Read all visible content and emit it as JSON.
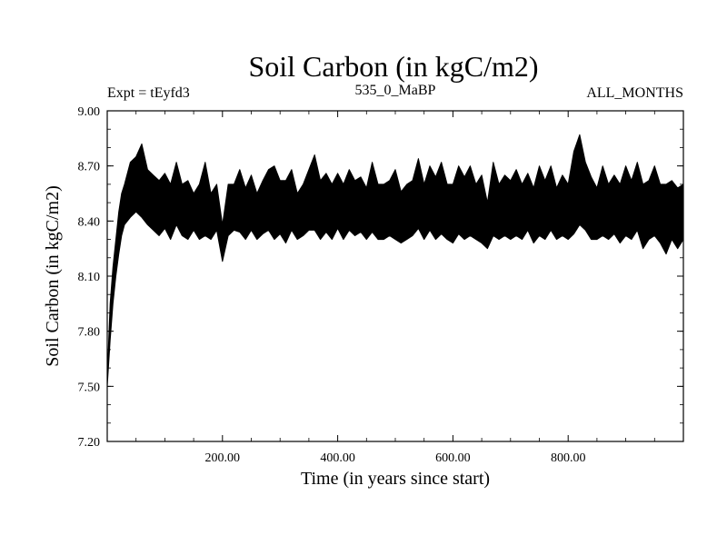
{
  "chart_data": {
    "type": "line",
    "title": "Soil Carbon (in kgC/m2)",
    "subtitle_left": "Expt = tEyfd3",
    "subtitle_center": "535_0_MaBP",
    "subtitle_right": "ALL_MONTHS",
    "xlabel": "Time (in years since start)",
    "ylabel": "Soil Carbon (in kgC/m2)",
    "xlim": [
      0,
      1000
    ],
    "ylim": [
      7.2,
      9.0
    ],
    "x_ticks": [
      200,
      400,
      600,
      800
    ],
    "x_tick_labels": [
      "200.00",
      "400.00",
      "600.00",
      "800.00"
    ],
    "y_ticks": [
      7.2,
      7.5,
      7.8,
      8.1,
      8.4,
      8.7,
      9.0
    ],
    "y_tick_labels": [
      "7.20",
      "7.50",
      "7.80",
      "8.10",
      "8.40",
      "8.70",
      "9.00"
    ],
    "series": [
      {
        "name": "Soil Carbon",
        "color": "#000000",
        "x": [
          0,
          5,
          10,
          15,
          20,
          25,
          30,
          40,
          50,
          60,
          70,
          80,
          90,
          100,
          110,
          120,
          130,
          140,
          150,
          160,
          170,
          180,
          190,
          200,
          210,
          220,
          230,
          240,
          250,
          260,
          270,
          280,
          290,
          300,
          310,
          320,
          330,
          340,
          350,
          360,
          370,
          380,
          390,
          400,
          410,
          420,
          430,
          440,
          450,
          460,
          470,
          480,
          490,
          500,
          510,
          520,
          530,
          540,
          550,
          560,
          570,
          580,
          590,
          600,
          610,
          620,
          630,
          640,
          650,
          660,
          670,
          680,
          690,
          700,
          710,
          720,
          730,
          740,
          750,
          760,
          770,
          780,
          790,
          800,
          810,
          820,
          830,
          840,
          850,
          860,
          870,
          880,
          890,
          900,
          910,
          920,
          930,
          940,
          950,
          960,
          970,
          980,
          990,
          1000
        ],
        "upper": [
          7.55,
          7.95,
          8.15,
          8.3,
          8.45,
          8.55,
          8.6,
          8.72,
          8.75,
          8.82,
          8.68,
          8.65,
          8.62,
          8.66,
          8.6,
          8.72,
          8.6,
          8.62,
          8.55,
          8.6,
          8.72,
          8.55,
          8.6,
          8.38,
          8.6,
          8.6,
          8.68,
          8.58,
          8.65,
          8.55,
          8.62,
          8.68,
          8.7,
          8.62,
          8.62,
          8.68,
          8.55,
          8.6,
          8.68,
          8.76,
          8.62,
          8.66,
          8.6,
          8.66,
          8.6,
          8.68,
          8.62,
          8.64,
          8.58,
          8.72,
          8.6,
          8.6,
          8.62,
          8.68,
          8.56,
          8.6,
          8.62,
          8.74,
          8.6,
          8.7,
          8.64,
          8.72,
          8.6,
          8.6,
          8.7,
          8.64,
          8.7,
          8.6,
          8.65,
          8.5,
          8.72,
          8.6,
          8.65,
          8.62,
          8.68,
          8.6,
          8.66,
          8.58,
          8.7,
          8.62,
          8.7,
          8.58,
          8.65,
          8.6,
          8.78,
          8.87,
          8.72,
          8.64,
          8.58,
          8.7,
          8.6,
          8.65,
          8.6,
          8.7,
          8.62,
          8.72,
          8.6,
          8.62,
          8.7,
          8.6,
          8.6,
          8.62,
          8.58,
          8.6
        ],
        "lower": [
          7.5,
          7.75,
          7.95,
          8.1,
          8.22,
          8.32,
          8.38,
          8.42,
          8.45,
          8.42,
          8.38,
          8.35,
          8.32,
          8.36,
          8.3,
          8.38,
          8.32,
          8.3,
          8.35,
          8.3,
          8.32,
          8.3,
          8.35,
          8.18,
          8.32,
          8.35,
          8.34,
          8.3,
          8.35,
          8.3,
          8.33,
          8.35,
          8.3,
          8.33,
          8.28,
          8.35,
          8.3,
          8.32,
          8.35,
          8.35,
          8.3,
          8.34,
          8.3,
          8.36,
          8.3,
          8.35,
          8.32,
          8.34,
          8.3,
          8.34,
          8.3,
          8.3,
          8.32,
          8.3,
          8.28,
          8.3,
          8.32,
          8.36,
          8.3,
          8.35,
          8.3,
          8.33,
          8.3,
          8.28,
          8.33,
          8.3,
          8.32,
          8.3,
          8.28,
          8.25,
          8.32,
          8.3,
          8.32,
          8.3,
          8.32,
          8.3,
          8.35,
          8.28,
          8.32,
          8.3,
          8.35,
          8.3,
          8.32,
          8.3,
          8.33,
          8.38,
          8.35,
          8.3,
          8.3,
          8.32,
          8.3,
          8.33,
          8.28,
          8.32,
          8.3,
          8.35,
          8.25,
          8.3,
          8.32,
          8.28,
          8.22,
          8.3,
          8.25,
          8.3
        ]
      }
    ]
  }
}
